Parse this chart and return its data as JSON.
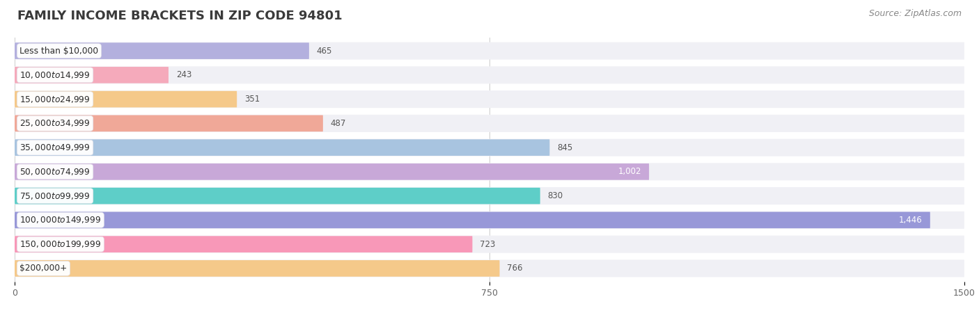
{
  "title": "FAMILY INCOME BRACKETS IN ZIP CODE 94801",
  "source_text": "Source: ZipAtlas.com",
  "categories": [
    "Less than $10,000",
    "$10,000 to $14,999",
    "$15,000 to $24,999",
    "$25,000 to $34,999",
    "$35,000 to $49,999",
    "$50,000 to $74,999",
    "$75,000 to $99,999",
    "$100,000 to $149,999",
    "$150,000 to $199,999",
    "$200,000+"
  ],
  "values": [
    465,
    243,
    351,
    487,
    845,
    1002,
    830,
    1446,
    723,
    766
  ],
  "bar_colors": [
    "#b3b0de",
    "#f5aabb",
    "#f5c98a",
    "#f0a898",
    "#a8c4e0",
    "#c8a8d8",
    "#5ecec8",
    "#9898d8",
    "#f898b8",
    "#f5c98a"
  ],
  "label_colors": [
    "#555555",
    "#555555",
    "#555555",
    "#555555",
    "#555555",
    "#ffffff",
    "#555555",
    "#ffffff",
    "#555555",
    "#555555"
  ],
  "xlim": [
    0,
    1500
  ],
  "xticks": [
    0,
    750,
    1500
  ],
  "background_color": "#ffffff",
  "row_bg_color": "#f0f0f5",
  "bar_bg_color": "#e8e8ee",
  "title_fontsize": 13,
  "source_fontsize": 9,
  "title_color": "#3a3a3a",
  "source_color": "#888888"
}
